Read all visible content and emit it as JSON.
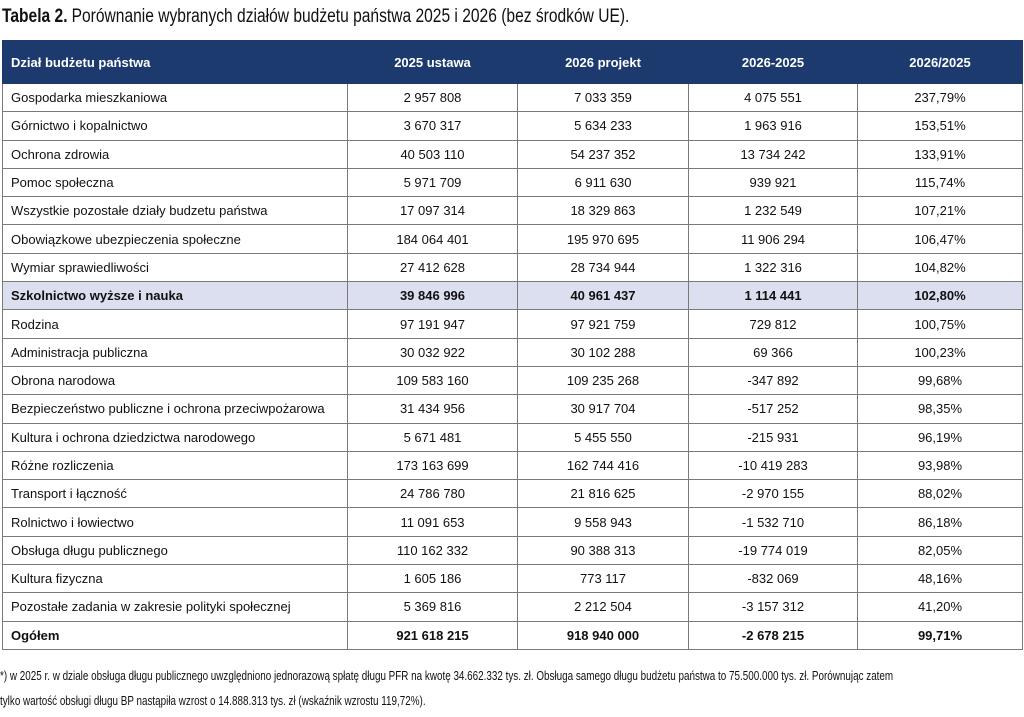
{
  "title": {
    "label": "Tabela 2.",
    "text": "Porównanie wybranych działów budżetu państwa 2025 i 2026 (bez środków UE)."
  },
  "table": {
    "header": [
      "Dział budżetu państwa",
      "2025 ustawa",
      "2026 projekt",
      "2026-2025",
      "2026/2025"
    ],
    "rows": [
      [
        "Gospodarka mieszkaniowa",
        "2 957 808",
        "7 033 359",
        "4 075 551",
        "237,79%"
      ],
      [
        "Górnictwo i kopalnictwo",
        "3 670 317",
        "5 634 233",
        "1 963 916",
        "153,51%"
      ],
      [
        "Ochrona zdrowia",
        "40 503 110",
        "54 237 352",
        "13 734 242",
        "133,91%"
      ],
      [
        "Pomoc społeczna",
        "5 971 709",
        "6 911 630",
        "939 921",
        "115,74%"
      ],
      [
        "Wszystkie pozostałe działy budzetu państwa",
        "17 097 314",
        "18 329 863",
        "1 232 549",
        "107,21%"
      ],
      [
        "Obowiązkowe ubezpieczenia społeczne",
        "184 064 401",
        "195 970 695",
        "11 906 294",
        "106,47%"
      ],
      [
        "Wymiar sprawiedliwości",
        "27 412 628",
        "28 734 944",
        "1 322 316",
        "104,82%"
      ],
      [
        "Szkolnictwo wyższe i nauka",
        "39 846 996",
        "40 961 437",
        "1 114 441",
        "102,80%"
      ],
      [
        "Rodzina",
        "97 191 947",
        "97 921 759",
        "729 812",
        "100,75%"
      ],
      [
        "Administracja publiczna",
        "30 032 922",
        "30 102 288",
        "69 366",
        "100,23%"
      ],
      [
        "Obrona narodowa",
        "109 583 160",
        "109 235 268",
        "-347 892",
        "99,68%"
      ],
      [
        "Bezpieczeństwo publiczne i ochrona przeciwpożarowa",
        "31 434 956",
        "30 917 704",
        "-517 252",
        "98,35%"
      ],
      [
        "Kultura i ochrona dziedzictwa narodowego",
        "5 671 481",
        "5 455 550",
        "-215 931",
        "96,19%"
      ],
      [
        "Różne rozliczenia",
        "173 163 699",
        "162 744 416",
        "-10 419 283",
        "93,98%"
      ],
      [
        "Transport i łączność",
        "24 786 780",
        "21 816 625",
        "-2 970 155",
        "88,02%"
      ],
      [
        "Rolnictwo i łowiectwo",
        "11 091 653",
        "9 558 943",
        "-1 532 710",
        "86,18%"
      ],
      [
        "Obsługa długu publicznego",
        "110 162 332",
        "90 388 313",
        "-19 774 019",
        "82,05%"
      ],
      [
        "Kultura fizyczna",
        "1 605 186",
        "773 117",
        "-832 069",
        "48,16%"
      ],
      [
        "Pozostałe zadania w zakresie polityki społecznej",
        "5 369 816",
        "2 212 504",
        "-3 157 312",
        "41,20%"
      ]
    ],
    "total": [
      "Ogółem",
      "921 618 215",
      "918 940 000",
      "-2 678 215",
      "99,71%"
    ]
  },
  "footnote": [
    "*) w 2025 r. w dziale obsługa długu publicznego uwzględniono jednorazową spłatę długu PFR na kwotę 34.662.332 tys. zł. Obsługa samego długu budżetu państwa to 75.500.000 tys. zł. Porównując zatem",
    "tylko wartość obsługi długu BP nastąpiła wzrost o 14.888.313 tys. zł (wskaźnik wzrostu 119,72%)."
  ]
}
